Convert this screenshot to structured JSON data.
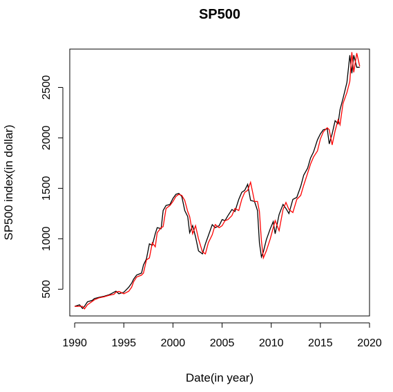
{
  "chart_data": {
    "type": "line",
    "title": "SP500",
    "xlabel": "Date(in year)",
    "ylabel": "SP500 index(in dollar)",
    "xlim": [
      1989.5,
      2020.0
    ],
    "ylim": [
      235,
      2880
    ],
    "x_ticks": [
      "1990",
      "1995",
      "2000",
      "2005",
      "2010",
      "2015",
      "2020"
    ],
    "y_ticks": [
      "500",
      "1000",
      "1500",
      "2000",
      "2500"
    ],
    "grid": false,
    "legend": "none",
    "series": [
      {
        "color": "#000000",
        "points": [
          [
            1990.0,
            330
          ],
          [
            1990.5,
            345
          ],
          [
            1990.8,
            310
          ],
          [
            1991.0,
            330
          ],
          [
            1991.3,
            375
          ],
          [
            1991.8,
            390
          ],
          [
            1992.0,
            408
          ],
          [
            1992.5,
            420
          ],
          [
            1993.0,
            430
          ],
          [
            1993.5,
            445
          ],
          [
            1994.0,
            470
          ],
          [
            1994.2,
            480
          ],
          [
            1994.5,
            455
          ],
          [
            1995.0,
            470
          ],
          [
            1995.5,
            520
          ],
          [
            1995.8,
            560
          ],
          [
            1996.0,
            600
          ],
          [
            1996.3,
            640
          ],
          [
            1996.8,
            660
          ],
          [
            1997.0,
            740
          ],
          [
            1997.3,
            800
          ],
          [
            1997.6,
            950
          ],
          [
            1997.9,
            935
          ],
          [
            1998.2,
            1050
          ],
          [
            1998.4,
            1110
          ],
          [
            1998.8,
            1100
          ],
          [
            1999.0,
            1280
          ],
          [
            1999.3,
            1330
          ],
          [
            1999.7,
            1340
          ],
          [
            2000.0,
            1400
          ],
          [
            2000.3,
            1440
          ],
          [
            2000.6,
            1450
          ],
          [
            2000.9,
            1420
          ],
          [
            2001.2,
            1280
          ],
          [
            2001.5,
            1220
          ],
          [
            2001.7,
            1060
          ],
          [
            2002.0,
            1130
          ],
          [
            2002.3,
            1020
          ],
          [
            2002.6,
            880
          ],
          [
            2003.0,
            850
          ],
          [
            2003.3,
            950
          ],
          [
            2003.6,
            1030
          ],
          [
            2004.0,
            1140
          ],
          [
            2004.3,
            1110
          ],
          [
            2004.7,
            1130
          ],
          [
            2005.0,
            1190
          ],
          [
            2005.3,
            1180
          ],
          [
            2005.6,
            1230
          ],
          [
            2006.0,
            1290
          ],
          [
            2006.3,
            1270
          ],
          [
            2006.7,
            1390
          ],
          [
            2007.0,
            1460
          ],
          [
            2007.3,
            1480
          ],
          [
            2007.6,
            1540
          ],
          [
            2007.9,
            1380
          ],
          [
            2008.3,
            1370
          ],
          [
            2008.6,
            1280
          ],
          [
            2008.8,
            960
          ],
          [
            2009.0,
            820
          ],
          [
            2009.2,
            870
          ],
          [
            2009.5,
            990
          ],
          [
            2009.9,
            1100
          ],
          [
            2010.2,
            1170
          ],
          [
            2010.4,
            1050
          ],
          [
            2010.8,
            1240
          ],
          [
            2011.2,
            1340
          ],
          [
            2011.5,
            1300
          ],
          [
            2011.8,
            1250
          ],
          [
            2012.2,
            1390
          ],
          [
            2012.6,
            1410
          ],
          [
            2013.0,
            1520
          ],
          [
            2013.3,
            1630
          ],
          [
            2013.7,
            1700
          ],
          [
            2014.0,
            1800
          ],
          [
            2014.3,
            1860
          ],
          [
            2014.7,
            1980
          ],
          [
            2015.0,
            2040
          ],
          [
            2015.3,
            2080
          ],
          [
            2015.7,
            2090
          ],
          [
            2015.9,
            1940
          ],
          [
            2016.2,
            2040
          ],
          [
            2016.5,
            2170
          ],
          [
            2016.8,
            2140
          ],
          [
            2017.0,
            2280
          ],
          [
            2017.3,
            2390
          ],
          [
            2017.7,
            2550
          ],
          [
            2018.0,
            2820
          ],
          [
            2018.2,
            2640
          ],
          [
            2018.4,
            2820
          ],
          [
            2018.7,
            2700
          ],
          [
            2019.0,
            2700
          ]
        ]
      },
      {
        "color": "#ff0000",
        "points": [
          [
            1990.0,
            330
          ],
          [
            1990.5,
            330
          ],
          [
            1990.8,
            330
          ],
          [
            1991.0,
            305
          ],
          [
            1991.3,
            345
          ],
          [
            1991.8,
            380
          ],
          [
            1992.0,
            395
          ],
          [
            1992.5,
            415
          ],
          [
            1993.0,
            425
          ],
          [
            1993.5,
            440
          ],
          [
            1994.0,
            450
          ],
          [
            1994.2,
            470
          ],
          [
            1994.5,
            478
          ],
          [
            1995.0,
            455
          ],
          [
            1995.5,
            480
          ],
          [
            1995.8,
            520
          ],
          [
            1996.0,
            575
          ],
          [
            1996.3,
            620
          ],
          [
            1996.8,
            640
          ],
          [
            1997.0,
            660
          ],
          [
            1997.3,
            790
          ],
          [
            1997.6,
            810
          ],
          [
            1997.9,
            960
          ],
          [
            1998.2,
            920
          ],
          [
            1998.4,
            1060
          ],
          [
            1998.8,
            1110
          ],
          [
            1999.0,
            1120
          ],
          [
            1999.3,
            1300
          ],
          [
            1999.7,
            1330
          ],
          [
            2000.0,
            1370
          ],
          [
            2000.3,
            1420
          ],
          [
            2000.6,
            1440
          ],
          [
            2000.9,
            1430
          ],
          [
            2001.2,
            1380
          ],
          [
            2001.5,
            1270
          ],
          [
            2001.7,
            1220
          ],
          [
            2002.0,
            1050
          ],
          [
            2002.3,
            1130
          ],
          [
            2002.6,
            1000
          ],
          [
            2003.0,
            870
          ],
          [
            2003.3,
            850
          ],
          [
            2003.6,
            960
          ],
          [
            2004.0,
            1040
          ],
          [
            2004.3,
            1140
          ],
          [
            2004.7,
            1110
          ],
          [
            2005.0,
            1130
          ],
          [
            2005.3,
            1180
          ],
          [
            2005.6,
            1190
          ],
          [
            2006.0,
            1230
          ],
          [
            2006.3,
            1300
          ],
          [
            2006.7,
            1280
          ],
          [
            2007.0,
            1390
          ],
          [
            2007.3,
            1460
          ],
          [
            2007.6,
            1480
          ],
          [
            2007.9,
            1560
          ],
          [
            2008.3,
            1370
          ],
          [
            2008.6,
            1370
          ],
          [
            2008.8,
            1270
          ],
          [
            2009.0,
            980
          ],
          [
            2009.2,
            810
          ],
          [
            2009.5,
            880
          ],
          [
            2009.9,
            1000
          ],
          [
            2010.2,
            1110
          ],
          [
            2010.4,
            1180
          ],
          [
            2010.8,
            1080
          ],
          [
            2011.2,
            1290
          ],
          [
            2011.5,
            1360
          ],
          [
            2011.8,
            1290
          ],
          [
            2012.2,
            1260
          ],
          [
            2012.6,
            1390
          ],
          [
            2013.0,
            1430
          ],
          [
            2013.3,
            1530
          ],
          [
            2013.7,
            1650
          ],
          [
            2014.0,
            1740
          ],
          [
            2014.3,
            1810
          ],
          [
            2014.7,
            1870
          ],
          [
            2015.0,
            1990
          ],
          [
            2015.3,
            2060
          ],
          [
            2015.7,
            2100
          ],
          [
            2015.9,
            2080
          ],
          [
            2016.2,
            1930
          ],
          [
            2016.5,
            2070
          ],
          [
            2016.8,
            2180
          ],
          [
            2017.0,
            2130
          ],
          [
            2017.3,
            2340
          ],
          [
            2017.7,
            2450
          ],
          [
            2018.0,
            2560
          ],
          [
            2018.2,
            2850
          ],
          [
            2018.4,
            2650
          ],
          [
            2018.7,
            2840
          ],
          [
            2019.0,
            2710
          ]
        ]
      }
    ]
  }
}
